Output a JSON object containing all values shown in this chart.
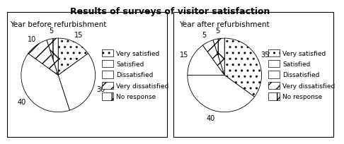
{
  "title": "Results of surveys of visitor satisfaction",
  "pie1_title": "Year before refurbishment",
  "pie2_title": "Year after refurbishment",
  "labels": [
    "Very satisfied",
    "Satisfied",
    "Dissatisfied",
    "Very dissatisfied",
    "No response"
  ],
  "before_values": [
    15,
    30,
    40,
    10,
    5
  ],
  "after_values": [
    35,
    40,
    15,
    5,
    5
  ],
  "before_label_vals": [
    "15",
    "30",
    "40",
    "10",
    "5"
  ],
  "after_label_vals": [
    "35",
    "40",
    "15",
    "5",
    "5"
  ],
  "hatch_patterns": [
    "..",
    "====",
    "+++",
    "///",
    "\\\\|"
  ],
  "title_fontsize": 9,
  "subtitle_fontsize": 7.5,
  "legend_fontsize": 6.5,
  "label_fontsize": 7
}
